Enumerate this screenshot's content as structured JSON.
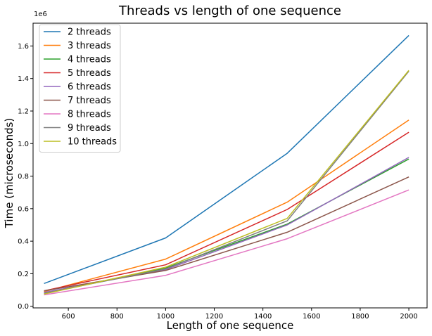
{
  "chart_data": {
    "type": "line",
    "title": "Threads vs length of one sequence",
    "xlabel": "Length of one sequence",
    "ylabel": "Time (microseconds)",
    "y_offset_label": "1e6",
    "x": [
      500,
      1000,
      1500,
      2000
    ],
    "xlim": [
      455,
      2075
    ],
    "ylim": [
      -0.01,
      1.74
    ],
    "x_ticks": [
      600,
      800,
      1000,
      1200,
      1400,
      1600,
      1800,
      2000
    ],
    "y_ticks": [
      0.0,
      0.2,
      0.4,
      0.6,
      0.8,
      1.0,
      1.2,
      1.4,
      1.6
    ],
    "y_tick_labels": [
      "0.0",
      "0.2",
      "0.4",
      "0.6",
      "0.8",
      "1.0",
      "1.2",
      "1.4",
      "1.6"
    ],
    "grid": false,
    "legend_position": "top-left",
    "series": [
      {
        "name": "2 threads",
        "color": "#1f77b4",
        "values": [
          0.14,
          0.42,
          0.94,
          1.665
        ]
      },
      {
        "name": "3 threads",
        "color": "#ff7f0e",
        "values": [
          0.09,
          0.29,
          0.64,
          1.145
        ]
      },
      {
        "name": "4 threads",
        "color": "#2ca02c",
        "values": [
          0.08,
          0.235,
          0.505,
          0.905
        ]
      },
      {
        "name": "5 threads",
        "color": "#d62728",
        "values": [
          0.095,
          0.255,
          0.595,
          1.07
        ]
      },
      {
        "name": "6 threads",
        "color": "#9467bd",
        "values": [
          0.085,
          0.225,
          0.5,
          0.915
        ]
      },
      {
        "name": "7 threads",
        "color": "#8c564b",
        "values": [
          0.095,
          0.22,
          0.455,
          0.795
        ]
      },
      {
        "name": "8 threads",
        "color": "#e377c2",
        "values": [
          0.07,
          0.19,
          0.415,
          0.715
        ]
      },
      {
        "name": "9 threads",
        "color": "#7f7f7f",
        "values": [
          0.08,
          0.23,
          0.525,
          1.445
        ]
      },
      {
        "name": "10 threads",
        "color": "#bcbd22",
        "values": [
          0.075,
          0.24,
          0.54,
          1.45
        ]
      }
    ]
  }
}
